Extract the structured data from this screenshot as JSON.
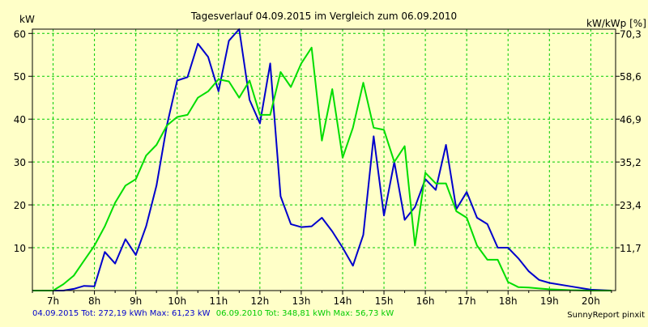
{
  "chart_data": {
    "type": "line",
    "title": "Tagesverlauf 04.09.2015 im Vergleich zum 06.09.2010",
    "ylabel_left": "kW",
    "ylabel_right": "kW/kWp [%]",
    "ylim": [
      0,
      61
    ],
    "y_ticks_left": [
      10,
      20,
      30,
      40,
      50,
      60
    ],
    "y_ticks_right": [
      "11,7",
      "23,4",
      "35,2",
      "46,9",
      "58,6",
      "70,3"
    ],
    "right_axis_max": 70.3,
    "xlim": [
      6.5,
      20.6
    ],
    "x_ticks": [
      7,
      8,
      9,
      10,
      11,
      12,
      13,
      14,
      15,
      16,
      17,
      18,
      19,
      20
    ],
    "x_tick_labels": [
      "7h",
      "8h",
      "9h",
      "10h",
      "11h",
      "12h",
      "13h",
      "14h",
      "15h",
      "16h",
      "17h",
      "18h",
      "19h",
      "20h"
    ],
    "grid": true,
    "colors": {
      "background": "#FFFFC8",
      "grid": "#00CC00"
    },
    "series": [
      {
        "color": "#0000CC",
        "x": [
          6.5,
          7.0,
          7.25,
          7.5,
          7.75,
          8.0,
          8.25,
          8.5,
          8.75,
          9.0,
          9.25,
          9.5,
          9.75,
          10.0,
          10.25,
          10.5,
          10.75,
          11.0,
          11.25,
          11.5,
          11.75,
          12.0,
          12.25,
          12.5,
          12.75,
          13.0,
          13.25,
          13.5,
          13.75,
          14.0,
          14.25,
          14.5,
          14.75,
          15.0,
          15.25,
          15.5,
          15.75,
          16.0,
          16.25,
          16.5,
          16.75,
          17.0,
          17.25,
          17.5,
          17.75,
          18.0,
          18.25,
          18.5,
          18.75,
          19.0,
          19.5,
          20.0,
          20.5
        ],
        "y": [
          0,
          0,
          0,
          0.4,
          1.1,
          1.0,
          9.0,
          6.3,
          12.0,
          8.3,
          15.0,
          24.5,
          38.5,
          49.0,
          49.8,
          57.6,
          54.5,
          46.5,
          58.3,
          61.0,
          44.5,
          39.0,
          53.0,
          22.0,
          15.5,
          14.8,
          15.0,
          17.0,
          13.8,
          10.0,
          5.8,
          13.0,
          36.0,
          17.5,
          30.0,
          16.5,
          19.5,
          26.0,
          23.5,
          34.0,
          19.0,
          23.0,
          17.0,
          15.5,
          10.0,
          10.0,
          7.5,
          4.5,
          2.5,
          1.8,
          1.0,
          0.2,
          0
        ]
      },
      {
        "color": "#00DD00",
        "x": [
          6.5,
          7.0,
          7.25,
          7.5,
          7.75,
          8.0,
          8.25,
          8.5,
          8.75,
          9.0,
          9.25,
          9.5,
          9.75,
          10.0,
          10.25,
          10.5,
          10.75,
          11.0,
          11.25,
          11.5,
          11.75,
          12.0,
          12.25,
          12.5,
          12.75,
          13.0,
          13.25,
          13.5,
          13.75,
          14.0,
          14.25,
          14.5,
          14.75,
          15.0,
          15.25,
          15.5,
          15.75,
          16.0,
          16.25,
          16.5,
          16.75,
          17.0,
          17.25,
          17.5,
          17.75,
          18.0,
          18.25,
          18.5,
          18.75,
          19.0,
          19.5,
          20.0,
          20.5
        ],
        "y": [
          0,
          0,
          1.5,
          3.5,
          7.0,
          10.5,
          15.0,
          20.5,
          24.5,
          26.0,
          31.5,
          34.0,
          38.5,
          40.5,
          41.0,
          45.0,
          46.5,
          49.3,
          48.8,
          45.0,
          49.0,
          41.0,
          41.0,
          51.0,
          47.5,
          53.0,
          56.7,
          35.0,
          47.0,
          31.0,
          38.0,
          48.5,
          38.0,
          37.5,
          30.0,
          33.7,
          10.5,
          27.5,
          25.0,
          25.0,
          18.5,
          17.0,
          10.5,
          7.2,
          7.2,
          2.0,
          0.8,
          0.7,
          0.5,
          0.3,
          0.1,
          0,
          0
        ]
      }
    ]
  },
  "footer": {
    "blue_text": "04.09.2015 Tot: 272,19 kWh Max: 61,23 kW",
    "green_text": "06.09.2010 Tot: 348,81 kWh Max: 56,73 kW",
    "brand": "SunnyReport pinxit"
  }
}
